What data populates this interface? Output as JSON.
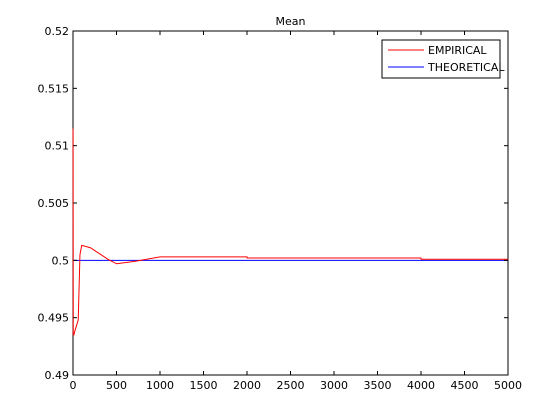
{
  "chart_data": {
    "type": "line",
    "title": "Mean",
    "xlabel": "",
    "ylabel": "",
    "xlim": [
      0,
      5000
    ],
    "ylim": [
      0.49,
      0.52
    ],
    "x_ticks": [
      0,
      500,
      1000,
      1500,
      2000,
      2500,
      3000,
      3500,
      4000,
      4500,
      5000
    ],
    "x_tick_labels": [
      "0",
      "500",
      "1000",
      "1500",
      "2000",
      "2500",
      "3000",
      "3500",
      "4000",
      "4500",
      "5000"
    ],
    "y_ticks": [
      0.49,
      0.495,
      0.5,
      0.505,
      0.51,
      0.515,
      0.52
    ],
    "y_tick_labels": [
      "0.49",
      "0.495",
      "0.5",
      "0.505",
      "0.51",
      "0.515",
      "0.52"
    ],
    "grid": false,
    "legend_position": "top-right",
    "series": [
      {
        "name": "EMPIRICAL",
        "color": "#ff0000",
        "x": [
          1,
          3,
          10,
          20,
          40,
          60,
          80,
          100,
          200,
          300,
          400,
          500,
          700,
          1000,
          2000,
          2001,
          4000,
          4001,
          5000
        ],
        "y": [
          0.5115,
          0.4935,
          0.4935,
          0.4938,
          0.4943,
          0.4948,
          0.5005,
          0.5013,
          0.5011,
          0.5006,
          0.5001,
          0.4997,
          0.4999,
          0.5003,
          0.5003,
          0.5002,
          0.5002,
          0.5001,
          0.5001
        ]
      },
      {
        "name": "THEORETICAL",
        "color": "#0000ff",
        "x": [
          0,
          5000
        ],
        "y": [
          0.5,
          0.5
        ]
      }
    ]
  }
}
